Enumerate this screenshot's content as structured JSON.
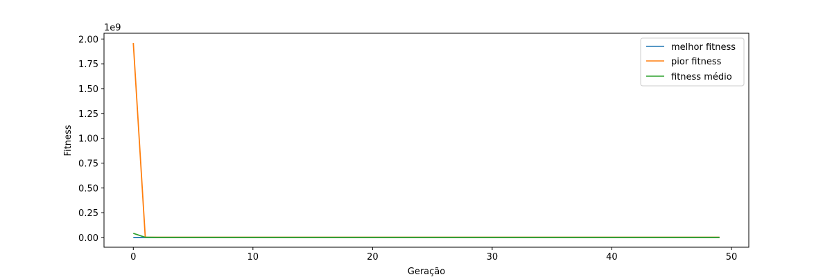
{
  "chart_data": {
    "type": "line",
    "xlabel": "Geração",
    "ylabel": "Fitness",
    "y_offset_label": "1e9",
    "xlim": [
      -2.45,
      51.45
    ],
    "ylim": [
      -0.098,
      2.058
    ],
    "x_ticks": [
      0,
      10,
      20,
      30,
      40,
      50
    ],
    "x_tick_labels": [
      "0",
      "10",
      "20",
      "30",
      "40",
      "50"
    ],
    "y_ticks": [
      0,
      0.25,
      0.5,
      0.75,
      1.0,
      1.25,
      1.5,
      1.75,
      2.0
    ],
    "y_tick_labels": [
      "0.00",
      "0.25",
      "0.50",
      "0.75",
      "1.00",
      "1.25",
      "1.50",
      "1.75",
      "2.00"
    ],
    "grid": false,
    "legend_position": "top-right",
    "x": [
      0,
      1,
      2,
      3,
      4,
      5,
      6,
      7,
      8,
      9,
      10,
      11,
      12,
      13,
      14,
      15,
      16,
      17,
      18,
      19,
      20,
      21,
      22,
      23,
      24,
      25,
      26,
      27,
      28,
      29,
      30,
      31,
      32,
      33,
      34,
      35,
      36,
      37,
      38,
      39,
      40,
      41,
      42,
      43,
      44,
      45,
      46,
      47,
      48,
      49
    ],
    "series": [
      {
        "name": "melhor fitness",
        "color": "#1f77b4",
        "values": [
          0.0005,
          0.0002,
          0.0001,
          0.0001,
          0.0001,
          0.0001,
          0.0001,
          0.0001,
          0.0001,
          0.0001,
          0.0001,
          0.0001,
          0.0001,
          0.0001,
          0.0001,
          0.0001,
          0.0001,
          0.0001,
          0.0001,
          0.0001,
          0.0001,
          0.0001,
          0.0001,
          0.0001,
          0.0001,
          0.0001,
          0.0001,
          0.0001,
          0.0001,
          0.0001,
          0.0001,
          0.0001,
          0.0001,
          0.0001,
          0.0001,
          0.0001,
          0.0001,
          0.0001,
          0.0001,
          0.0001,
          0.0001,
          0.0001,
          0.0001,
          0.0001,
          0.0001,
          0.0001,
          0.0001,
          0.0001,
          0.0001,
          0.0001
        ]
      },
      {
        "name": "pior fitness",
        "color": "#ff7f0e",
        "values": [
          1.96,
          0.003,
          0.002,
          0.002,
          0.002,
          0.002,
          0.002,
          0.002,
          0.002,
          0.002,
          0.002,
          0.002,
          0.002,
          0.002,
          0.002,
          0.002,
          0.002,
          0.002,
          0.002,
          0.002,
          0.002,
          0.002,
          0.002,
          0.002,
          0.002,
          0.002,
          0.002,
          0.002,
          0.002,
          0.002,
          0.002,
          0.002,
          0.002,
          0.002,
          0.002,
          0.002,
          0.002,
          0.002,
          0.002,
          0.002,
          0.002,
          0.002,
          0.002,
          0.002,
          0.002,
          0.002,
          0.002,
          0.002,
          0.002,
          0.002
        ]
      },
      {
        "name": "fitness médio",
        "color": "#2ca02c",
        "values": [
          0.042,
          0.002,
          0.001,
          0.001,
          0.001,
          0.001,
          0.001,
          0.001,
          0.001,
          0.001,
          0.001,
          0.001,
          0.001,
          0.001,
          0.001,
          0.001,
          0.001,
          0.001,
          0.001,
          0.001,
          0.001,
          0.001,
          0.001,
          0.001,
          0.001,
          0.001,
          0.001,
          0.001,
          0.001,
          0.001,
          0.001,
          0.001,
          0.001,
          0.001,
          0.001,
          0.001,
          0.001,
          0.001,
          0.001,
          0.001,
          0.001,
          0.001,
          0.001,
          0.001,
          0.001,
          0.001,
          0.001,
          0.001,
          0.001,
          0.001
        ]
      }
    ]
  }
}
